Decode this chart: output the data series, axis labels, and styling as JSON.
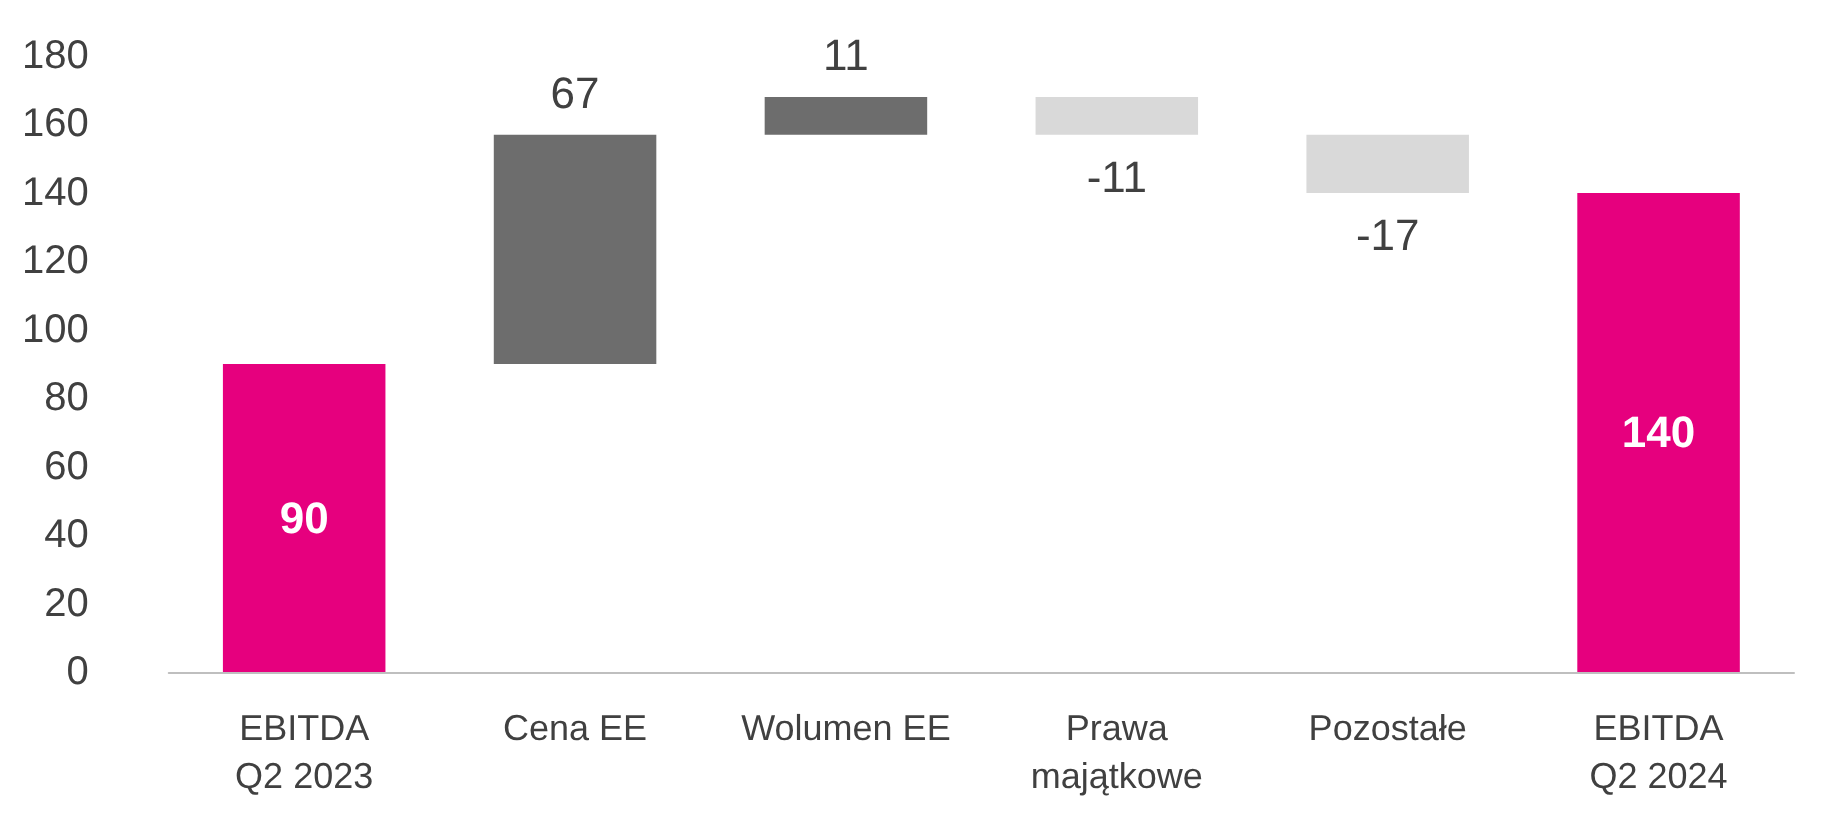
{
  "chart_data": {
    "type": "bar",
    "categories": [
      "EBITDA Q2 2023",
      "Cena EE",
      "Wolumen EE",
      "Prawa majątkowe",
      "Pozostałe",
      "EBITDA Q2 2024"
    ],
    "values": [
      90,
      67,
      11,
      -11,
      -17,
      140
    ],
    "base": [
      0,
      90,
      157,
      168,
      157,
      0
    ],
    "colors": [
      "#e6007e",
      "#6d6d6d",
      "#6d6d6d",
      "#d9d9d9",
      "#d9d9d9",
      "#e6007e"
    ],
    "ylim": [
      0,
      180
    ],
    "yticks": [
      0,
      20,
      40,
      60,
      80,
      100,
      120,
      140,
      160,
      180
    ],
    "data_labels": true
  }
}
